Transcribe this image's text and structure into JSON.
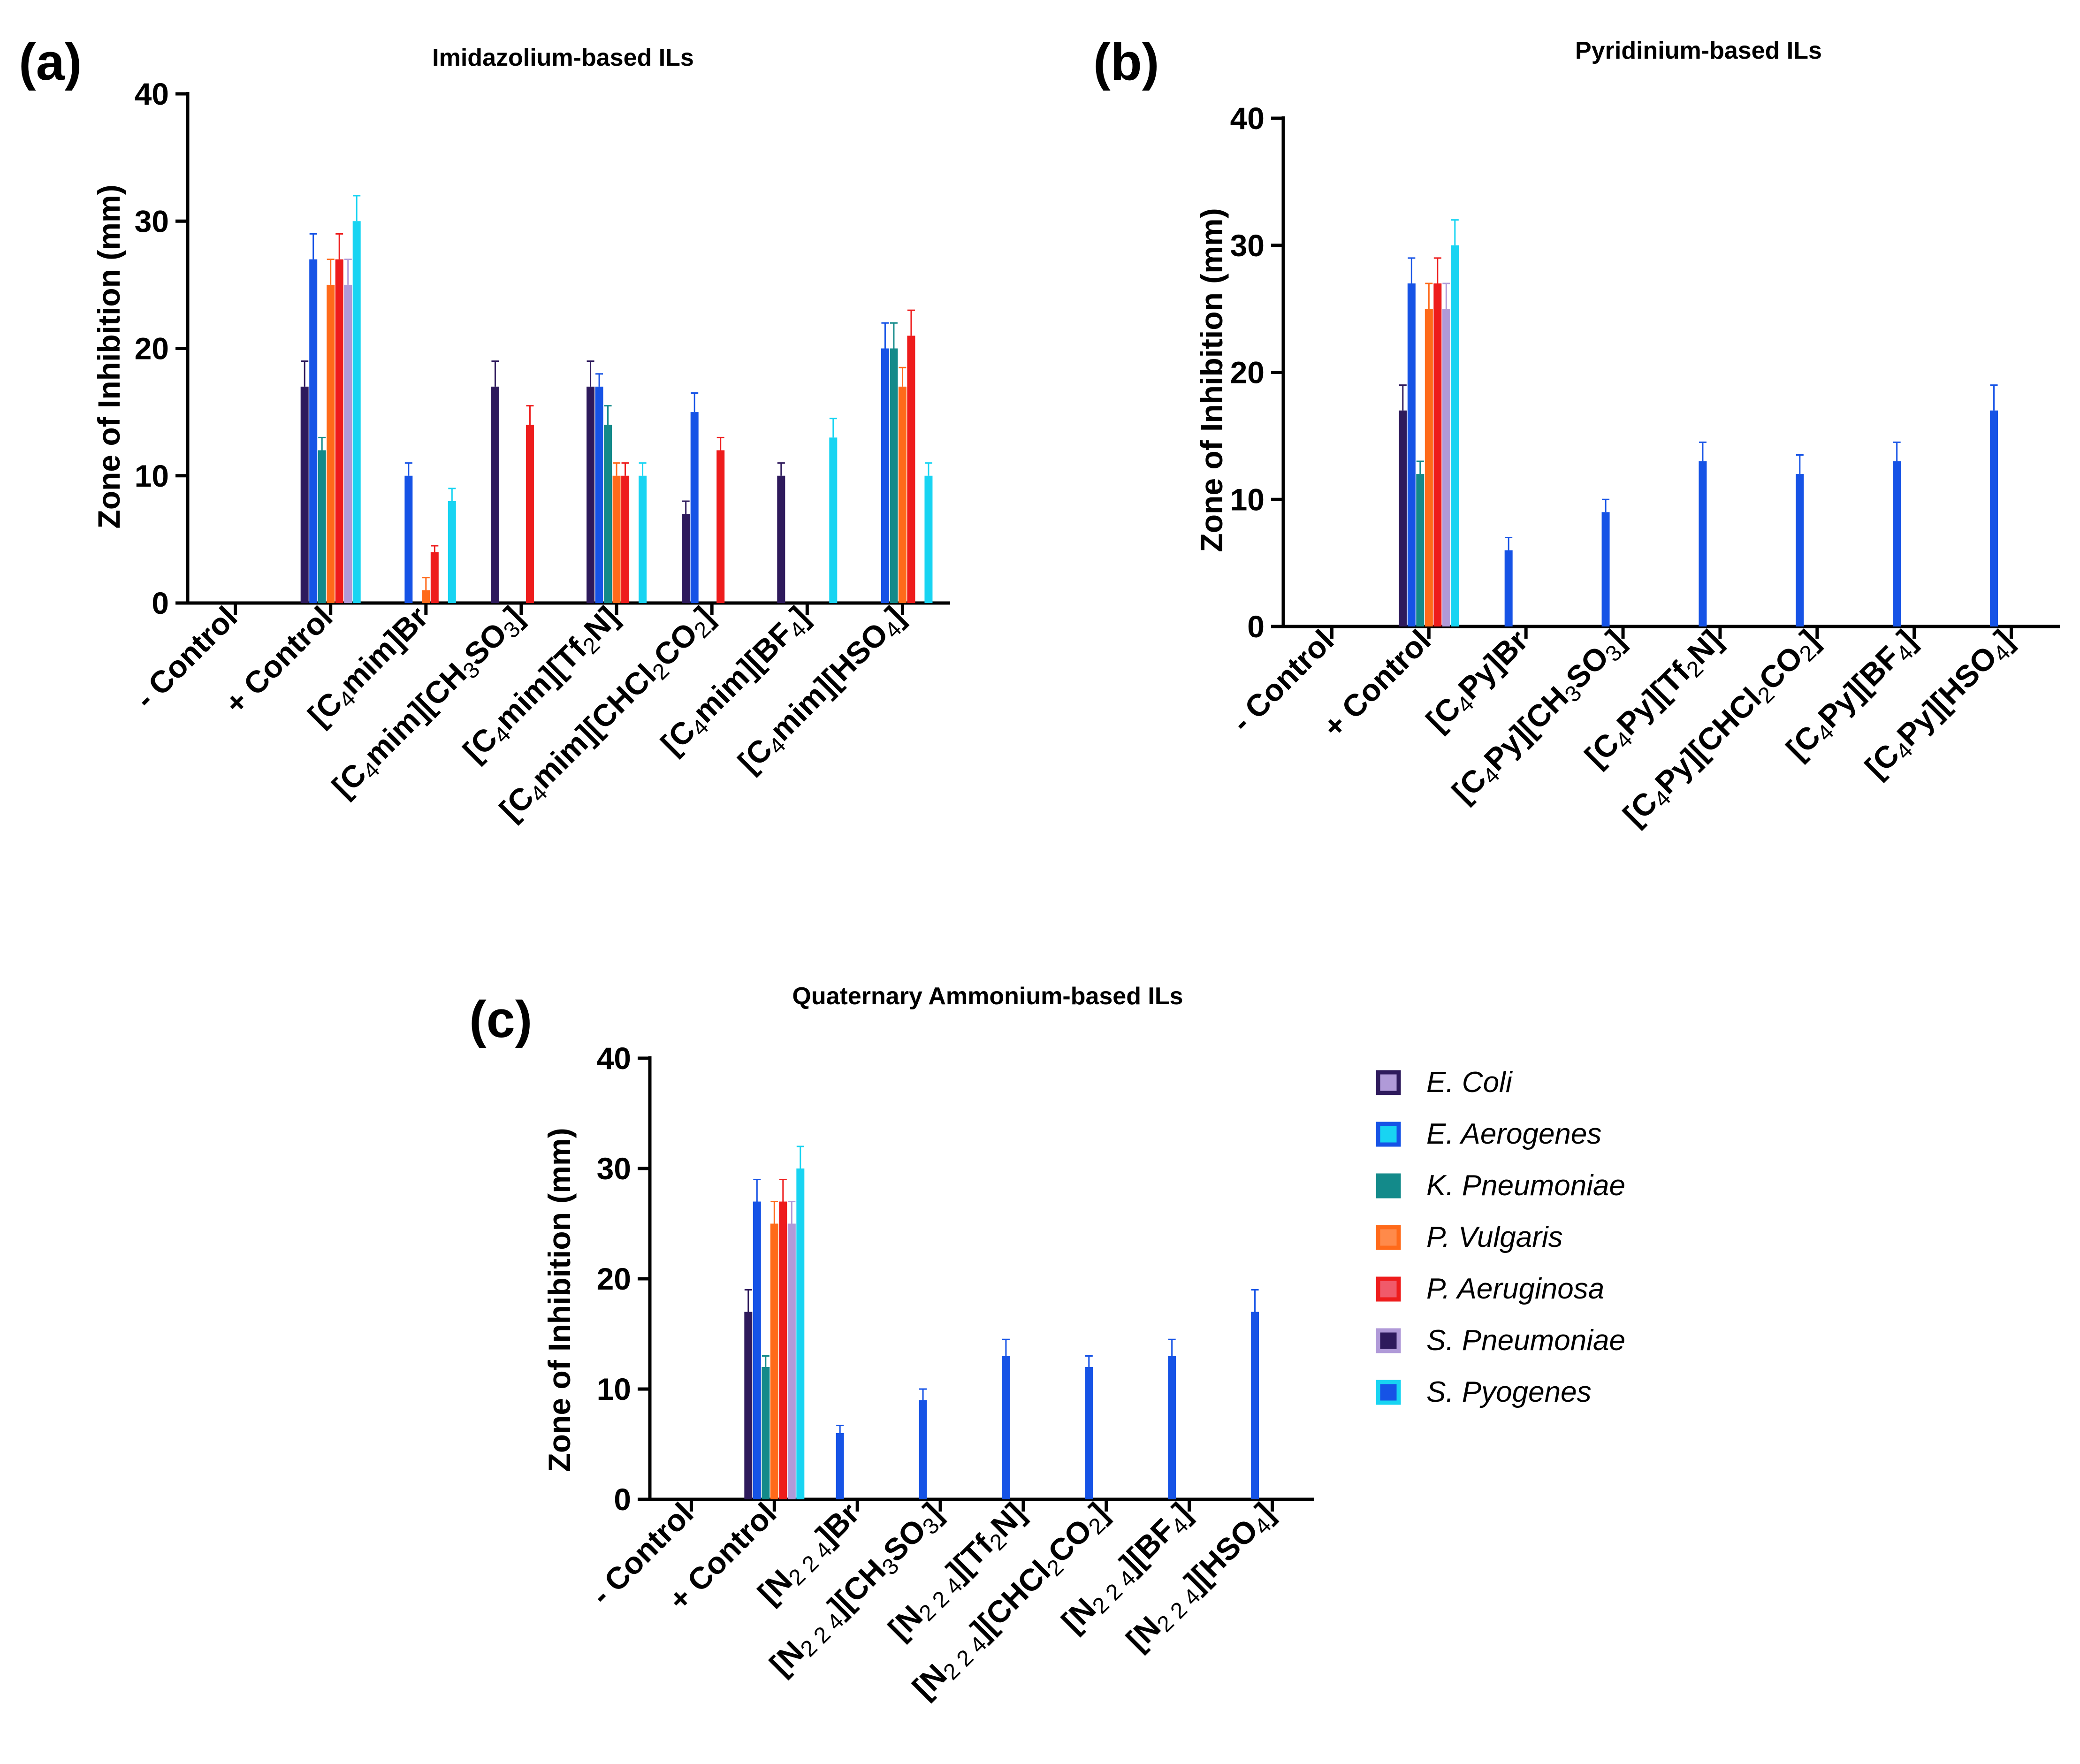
{
  "series_colors": {
    "E. Coli": "#2e1a5c",
    "E. Aerogenes": "#1653e6",
    "K. Pneumoniae": "#138a8a",
    "P. Vulgaris": "#ff6a1a",
    "P. Aeruginosa": "#ee1c1c",
    "S. Pneumoniae": "#b09ad8",
    "S. Pyogenes": "#18d4f2"
  },
  "legend": {
    "entries": [
      {
        "name": "E. Coli",
        "border": "#2e1a5c",
        "fill": "#b09ad8"
      },
      {
        "name": "E. Aerogenes",
        "border": "#1653e6",
        "fill": "#18d4f2"
      },
      {
        "name": "K. Pneumoniae",
        "border": "#138a8a",
        "fill": "#138a8a"
      },
      {
        "name": "P. Vulgaris",
        "border": "#ff6a1a",
        "fill": "#ff8a4a"
      },
      {
        "name": "P. Aeruginosa",
        "border": "#ee1c1c",
        "fill": "#f05a6a"
      },
      {
        "name": "S. Pneumoniae",
        "border": "#b09ad8",
        "fill": "#2e1a5c"
      },
      {
        "name": "S. Pyogenes",
        "border": "#18d4f2",
        "fill": "#1653e6"
      }
    ]
  },
  "chart_data": [
    {
      "panel": "(a)",
      "type": "bar",
      "title": "Imidazolium-based ILs",
      "ylabel": "Zone of Inhibition (mm)",
      "xlabel": "",
      "ylim": [
        0,
        40
      ],
      "yticks": [
        0,
        10,
        20,
        30,
        40
      ],
      "categories": [
        "- Control",
        "+ Control",
        "[C4mim]Br",
        "[C4mim][CH3SO3]",
        "[C4mim][Tf2N]",
        "[C4mim][CHCl2CO2]",
        "[C4mim][BF4]",
        "[C4mim][HSO4]"
      ],
      "category_labels": [
        [
          {
            "t": "- Control"
          }
        ],
        [
          {
            "t": "+ Control"
          }
        ],
        [
          {
            "t": "[C"
          },
          {
            "t": "4",
            "sub": true
          },
          {
            "t": "mim]Br"
          }
        ],
        [
          {
            "t": "[C"
          },
          {
            "t": "4",
            "sub": true
          },
          {
            "t": "mim][CH"
          },
          {
            "t": "3",
            "sub": true
          },
          {
            "t": "SO"
          },
          {
            "t": "3",
            "sub": true
          },
          {
            "t": "]"
          }
        ],
        [
          {
            "t": "[C"
          },
          {
            "t": "4",
            "sub": true
          },
          {
            "t": "mim][Tf"
          },
          {
            "t": "2",
            "sub": true
          },
          {
            "t": "N]"
          }
        ],
        [
          {
            "t": "[C"
          },
          {
            "t": "4",
            "sub": true
          },
          {
            "t": "mim][CHCl"
          },
          {
            "t": "2",
            "sub": true
          },
          {
            "t": "CO"
          },
          {
            "t": "2",
            "sub": true
          },
          {
            "t": "]"
          }
        ],
        [
          {
            "t": "[C"
          },
          {
            "t": "4",
            "sub": true
          },
          {
            "t": "mim][BF"
          },
          {
            "t": "4",
            "sub": true
          },
          {
            "t": "]"
          }
        ],
        [
          {
            "t": "[C"
          },
          {
            "t": "4",
            "sub": true
          },
          {
            "t": "mim][HSO"
          },
          {
            "t": "4",
            "sub": true
          },
          {
            "t": "]"
          }
        ]
      ],
      "series": [
        {
          "name": "E. Coli",
          "values": [
            0,
            17,
            0,
            17,
            17,
            7,
            10,
            0
          ],
          "errors": [
            0,
            2,
            0,
            2,
            2,
            1,
            1,
            0
          ]
        },
        {
          "name": "E. Aerogenes",
          "values": [
            0,
            27,
            10,
            0,
            17,
            15,
            0,
            20
          ],
          "errors": [
            0,
            2,
            1,
            0,
            1,
            1.5,
            0,
            2
          ]
        },
        {
          "name": "K. Pneumoniae",
          "values": [
            0,
            12,
            0,
            0,
            14,
            0,
            0,
            20
          ],
          "errors": [
            0,
            1,
            0,
            0,
            1.5,
            0,
            0,
            2
          ]
        },
        {
          "name": "P. Vulgaris",
          "values": [
            0,
            25,
            1,
            0,
            10,
            0,
            0,
            17
          ],
          "errors": [
            0,
            2,
            1,
            0,
            1,
            0,
            0,
            1.5
          ]
        },
        {
          "name": "P. Aeruginosa",
          "values": [
            0,
            27,
            4,
            14,
            10,
            12,
            0,
            21
          ],
          "errors": [
            0,
            2,
            0.5,
            1.5,
            1,
            1,
            0,
            2
          ]
        },
        {
          "name": "S. Pneumoniae",
          "values": [
            0,
            25,
            0,
            0,
            0,
            0,
            0,
            0
          ],
          "errors": [
            0,
            2,
            0,
            0,
            0,
            0,
            0,
            0
          ]
        },
        {
          "name": "S. Pyogenes",
          "values": [
            0,
            30,
            8,
            0,
            10,
            0,
            13,
            10
          ],
          "errors": [
            0,
            2,
            1,
            0,
            1,
            0,
            1.5,
            1
          ]
        }
      ]
    },
    {
      "panel": "(b)",
      "type": "bar",
      "title": "Pyridinium-based ILs",
      "ylabel": "Zone of Inhibition (mm)",
      "xlabel": "",
      "ylim": [
        0,
        40
      ],
      "yticks": [
        0,
        10,
        20,
        30,
        40
      ],
      "categories": [
        "- Control",
        "+ Control",
        "[C4Py]Br",
        "[C4Py][CH3SO3]",
        "[C4Py][Tf2N]",
        "[C4Py][CHCl2CO2]",
        "[C4Py][BF4]",
        "[C4Py][HSO4]"
      ],
      "category_labels": [
        [
          {
            "t": "- Control"
          }
        ],
        [
          {
            "t": "+ Control"
          }
        ],
        [
          {
            "t": "[C"
          },
          {
            "t": "4",
            "sub": true
          },
          {
            "t": "Py]Br"
          }
        ],
        [
          {
            "t": "[C"
          },
          {
            "t": "4",
            "sub": true
          },
          {
            "t": "Py][CH"
          },
          {
            "t": "3",
            "sub": true
          },
          {
            "t": "SO"
          },
          {
            "t": "3",
            "sub": true
          },
          {
            "t": "]"
          }
        ],
        [
          {
            "t": "[C"
          },
          {
            "t": "4",
            "sub": true
          },
          {
            "t": "Py][Tf"
          },
          {
            "t": "2",
            "sub": true
          },
          {
            "t": "N]"
          }
        ],
        [
          {
            "t": "[C"
          },
          {
            "t": "4",
            "sub": true
          },
          {
            "t": "Py][CHCl"
          },
          {
            "t": "2",
            "sub": true
          },
          {
            "t": "CO"
          },
          {
            "t": "2",
            "sub": true
          },
          {
            "t": "]"
          }
        ],
        [
          {
            "t": "[C"
          },
          {
            "t": "4",
            "sub": true
          },
          {
            "t": "Py][BF"
          },
          {
            "t": "4",
            "sub": true
          },
          {
            "t": "]"
          }
        ],
        [
          {
            "t": "[C"
          },
          {
            "t": "4",
            "sub": true
          },
          {
            "t": "Py][HSO"
          },
          {
            "t": "4",
            "sub": true
          },
          {
            "t": "]"
          }
        ]
      ],
      "series": [
        {
          "name": "E. Coli",
          "values": [
            0,
            17,
            0,
            0,
            0,
            0,
            0,
            0
          ],
          "errors": [
            0,
            2,
            0,
            0,
            0,
            0,
            0,
            0
          ]
        },
        {
          "name": "E. Aerogenes",
          "values": [
            0,
            27,
            6,
            9,
            13,
            12,
            13,
            17
          ],
          "errors": [
            0,
            2,
            1,
            1,
            1.5,
            1.5,
            1.5,
            2
          ]
        },
        {
          "name": "K. Pneumoniae",
          "values": [
            0,
            12,
            0,
            0,
            0,
            0,
            0,
            0
          ],
          "errors": [
            0,
            1,
            0,
            0,
            0,
            0,
            0,
            0
          ]
        },
        {
          "name": "P. Vulgaris",
          "values": [
            0,
            25,
            0,
            0,
            0,
            0,
            0,
            0
          ],
          "errors": [
            0,
            2,
            0,
            0,
            0,
            0,
            0,
            0
          ]
        },
        {
          "name": "P. Aeruginosa",
          "values": [
            0,
            27,
            0,
            0,
            0,
            0,
            0,
            0
          ],
          "errors": [
            0,
            2,
            0,
            0,
            0,
            0,
            0,
            0
          ]
        },
        {
          "name": "S. Pneumoniae",
          "values": [
            0,
            25,
            0,
            0,
            0,
            0,
            0,
            0
          ],
          "errors": [
            0,
            2,
            0,
            0,
            0,
            0,
            0,
            0
          ]
        },
        {
          "name": "S. Pyogenes",
          "values": [
            0,
            30,
            0,
            0,
            0,
            0,
            0,
            0
          ],
          "errors": [
            0,
            2,
            0,
            0,
            0,
            0,
            0,
            0
          ]
        }
      ]
    },
    {
      "panel": "(c)",
      "type": "bar",
      "title": "Quaternary Ammonium-based ILs",
      "ylabel": "Zone of Inhibition (mm)",
      "xlabel": "",
      "ylim": [
        0,
        40
      ],
      "yticks": [
        0,
        10,
        20,
        30,
        40
      ],
      "categories": [
        "- Control",
        "+ Control",
        "[N224]Br",
        "[N224][CH3SO3]",
        "[N224][Tf2N]",
        "[N224][CHCl2CO2]",
        "[N224][BF4]",
        "[N224][HSO4]"
      ],
      "category_labels": [
        [
          {
            "t": "- Control"
          }
        ],
        [
          {
            "t": "+ Control"
          }
        ],
        [
          {
            "t": "[N"
          },
          {
            "t": "2 2 4",
            "sub": true
          },
          {
            "t": "]Br"
          }
        ],
        [
          {
            "t": "[N"
          },
          {
            "t": "2 2 4",
            "sub": true
          },
          {
            "t": "][CH"
          },
          {
            "t": "3",
            "sub": true
          },
          {
            "t": "SO"
          },
          {
            "t": "3",
            "sub": true
          },
          {
            "t": "]"
          }
        ],
        [
          {
            "t": "[N"
          },
          {
            "t": "2 2 4",
            "sub": true
          },
          {
            "t": "][Tf"
          },
          {
            "t": "2",
            "sub": true
          },
          {
            "t": "N]"
          }
        ],
        [
          {
            "t": "[N"
          },
          {
            "t": "2 2 4",
            "sub": true
          },
          {
            "t": "][CHCl"
          },
          {
            "t": "2",
            "sub": true
          },
          {
            "t": "CO"
          },
          {
            "t": "2",
            "sub": true
          },
          {
            "t": "]"
          }
        ],
        [
          {
            "t": "[N"
          },
          {
            "t": "2 2 4",
            "sub": true
          },
          {
            "t": "][BF"
          },
          {
            "t": "4",
            "sub": true
          },
          {
            "t": "]"
          }
        ],
        [
          {
            "t": "[N"
          },
          {
            "t": "2 2 4",
            "sub": true
          },
          {
            "t": "][HSO"
          },
          {
            "t": "4",
            "sub": true
          },
          {
            "t": "]"
          }
        ]
      ],
      "series": [
        {
          "name": "E. Coli",
          "values": [
            0,
            17,
            0,
            0,
            0,
            0,
            0,
            0
          ],
          "errors": [
            0,
            2,
            0,
            0,
            0,
            0,
            0,
            0
          ]
        },
        {
          "name": "E. Aerogenes",
          "values": [
            0,
            27,
            6,
            9,
            13,
            12,
            13,
            17
          ],
          "errors": [
            0,
            2,
            0.7,
            1,
            1.5,
            1,
            1.5,
            2
          ]
        },
        {
          "name": "K. Pneumoniae",
          "values": [
            0,
            12,
            0,
            0,
            0,
            0,
            0,
            0
          ],
          "errors": [
            0,
            1,
            0,
            0,
            0,
            0,
            0,
            0
          ]
        },
        {
          "name": "P. Vulgaris",
          "values": [
            0,
            25,
            0,
            0,
            0,
            0,
            0,
            0
          ],
          "errors": [
            0,
            2,
            0,
            0,
            0,
            0,
            0,
            0
          ]
        },
        {
          "name": "P. Aeruginosa",
          "values": [
            0,
            27,
            0,
            0,
            0,
            0,
            0,
            0
          ],
          "errors": [
            0,
            2,
            0,
            0,
            0,
            0,
            0,
            0
          ]
        },
        {
          "name": "S. Pneumoniae",
          "values": [
            0,
            25,
            0,
            0,
            0,
            0,
            0,
            0
          ],
          "errors": [
            0,
            2,
            0,
            0,
            0,
            0,
            0,
            0
          ]
        },
        {
          "name": "S. Pyogenes",
          "values": [
            0,
            30,
            0,
            0,
            0,
            0,
            0,
            0
          ],
          "errors": [
            0,
            2,
            0,
            0,
            0,
            0,
            0,
            0
          ]
        }
      ]
    }
  ]
}
